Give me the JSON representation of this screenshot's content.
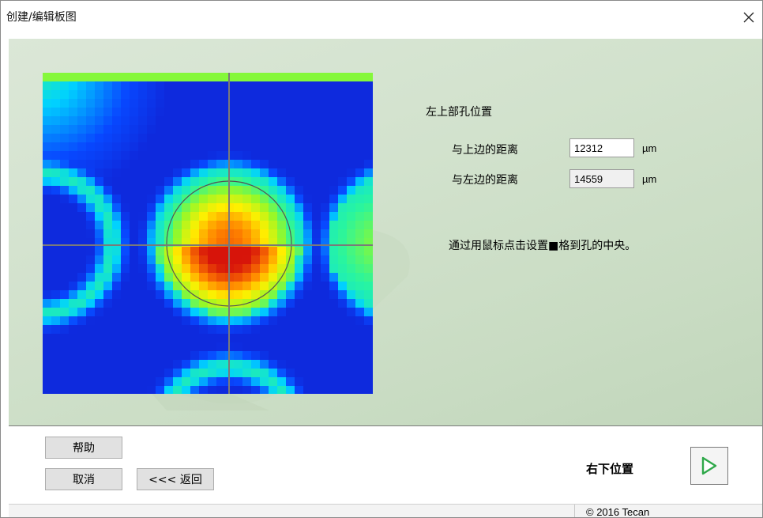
{
  "window": {
    "title": "创建/编辑板图",
    "close_glyph": "✕"
  },
  "plate_position": {
    "section_title": "左上部孔位置",
    "distance_top_label": "与上边的距离",
    "distance_top_value": "12312",
    "distance_top_unit": "µm",
    "distance_left_label": "与左边的距离",
    "distance_left_value": "14559",
    "distance_left_unit": "µm",
    "instruction": "通过用鼠标点击设置■格到孔的中央。"
  },
  "buttons": {
    "help_label": "帮助",
    "cancel_label": "取消",
    "back_label": "<<< 返回",
    "next_step_label": "右下位置"
  },
  "status_bar": {
    "copyright": "© 2016 Tecan"
  },
  "icons": {
    "close": "close-icon",
    "next": "play-arrow-icon",
    "accent_green": "#2fa84a"
  }
}
